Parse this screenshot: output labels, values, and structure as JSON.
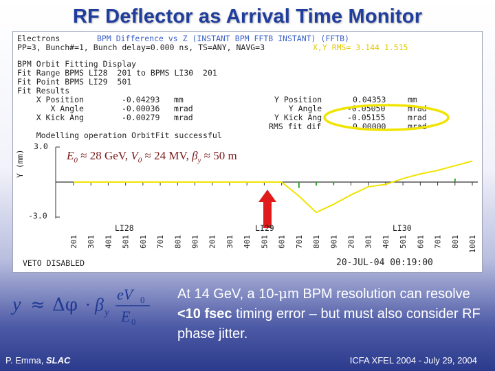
{
  "slide": {
    "title": "RF Deflector as Arrival Time Monitor",
    "body_prefix": "At 14 GeV, a 10-",
    "body_mu": "μ",
    "body_mid1": "m BPM resolution can resolve ",
    "body_bold": "<10 fsec",
    "body_mid2": " timing error – but must also consider RF phase jitter.",
    "footer_author": "P. Emma, ",
    "footer_org": "SLAC",
    "footer_event": "ICFA XFEL 2004 - July 29, 2004"
  },
  "formula": {
    "lhs": "y",
    "approx": "≈",
    "delta": "Δφ",
    "dot": "·",
    "beta": "β",
    "beta_sub": "y",
    "num": "eV",
    "num_sub": "0",
    "den": "E",
    "den_sub": "0"
  },
  "screen": {
    "line1_left": "Electrons",
    "line1_blue": "BPM Difference vs Z (INSTANT BPM FFTB INSTANT) (FFTB)",
    "line2_left": "PP=3, Bunch#=1, Bunch delay=0.000 ns, TS=ANY, NAVG=3",
    "line2_yellow": "X,Y RMS= 3.144 1.515",
    "fit_header": [
      "BPM Orbit Fitting Display",
      "Fit Range BPMS LI28  201 to BPMS LI30  201",
      "Fit Point BPMS LI29  501",
      "Fit Results"
    ],
    "fit_rows_left": [
      {
        "label": "    X Position",
        "value": "-0.04293",
        "unit": "mm"
      },
      {
        "label": "       X Angle",
        "value": "-0.00036",
        "unit": "mrad"
      },
      {
        "label": "    X Kick Ang",
        "value": "-0.00279",
        "unit": "mrad"
      }
    ],
    "fit_rows_right": [
      {
        "label": "Y Position",
        "value": "0.04353",
        "unit": "mm"
      },
      {
        "label": "   Y Angle",
        "value": "-0.05050",
        "unit": "mrad"
      },
      {
        "label": "Y Kick Ang",
        "value": "-0.05155",
        "unit": "mrad"
      },
      {
        "label": "RMS fit dif",
        "value": "0.00000",
        "unit": "mrad"
      }
    ],
    "fit_status": "    Modelling operation OrbitFit successful",
    "plot_label_E": "E",
    "plot_label_E_sub": "0",
    "plot_label_rest1": " ≈ 28 GeV, ",
    "plot_label_V": "V",
    "plot_label_V_sub": "0",
    "plot_label_rest2": " ≈ 24 MV, ",
    "plot_label_beta": "β",
    "plot_label_beta_sub": "y",
    "plot_label_rest3": " ≈ 50 m",
    "y_top": "3.0",
    "y_bottom": "-3.0",
    "y_axis_label": "Y (mm)",
    "sector_labels": [
      "LI28",
      "LI29",
      "LI30"
    ],
    "bpm_ticks": [
      "201",
      "301",
      "401",
      "501",
      "601",
      "701",
      "801",
      "901",
      "201",
      "301",
      "401",
      "501",
      "601",
      "701",
      "801",
      "901",
      "201",
      "301",
      "401",
      "501",
      "601",
      "701",
      "801",
      "1001"
    ],
    "veto": "VETO DISABLED",
    "timestamp": "20-JUL-04 00:19:00"
  },
  "chart_data": {
    "type": "line",
    "ylim": [
      -3.0,
      3.0
    ],
    "xlabel": "",
    "ylabel": "Y (mm)",
    "series": [
      {
        "color": "#f0e400",
        "values": [
          0.0,
          0.0,
          0.0,
          0.0,
          0.0,
          0.0,
          0.0,
          0.0,
          0.0,
          0.0,
          0.0,
          0.0,
          0.0,
          -1.2,
          -2.6,
          -1.9,
          -1.1,
          -0.4,
          -0.2,
          0.3,
          0.7,
          1.0,
          1.4,
          1.8
        ]
      }
    ],
    "measured_bars": [
      0.0,
      0.0,
      0.0,
      0.0,
      0.0,
      0.0,
      0.0,
      0.0,
      0.0,
      0.0,
      0.0,
      0.0,
      0.0,
      -0.5,
      -0.3,
      -0.2,
      0.0,
      0.0,
      0.0,
      0.0,
      0.0,
      0.0,
      0.3,
      0.0
    ]
  }
}
